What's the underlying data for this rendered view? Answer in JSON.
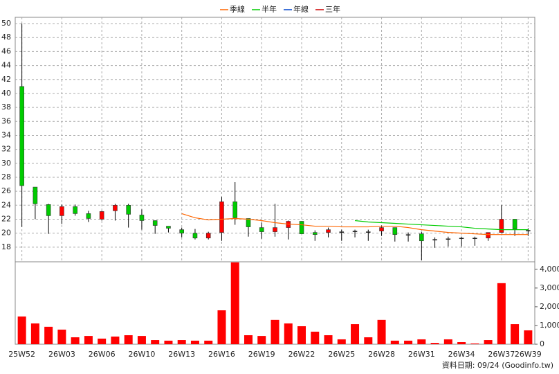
{
  "chart_data": {
    "type": "candlestick",
    "categories": [
      "25W52",
      null,
      null,
      "26W03",
      null,
      null,
      "26W06",
      null,
      null,
      "26W10",
      null,
      null,
      "26W13",
      null,
      null,
      "26W16",
      null,
      null,
      "26W19",
      null,
      null,
      "26W22",
      null,
      null,
      "26W25",
      null,
      null,
      "26W28",
      null,
      null,
      "26W31",
      null,
      null,
      "26W34",
      null,
      null,
      "26W37",
      null,
      "26W39"
    ],
    "open": [
      41,
      26.6,
      24.1,
      22.5,
      23.8,
      22.8,
      22,
      23.2,
      24,
      22.6,
      21.8,
      21,
      20.5,
      20,
      19.3,
      20.1,
      24.5,
      22.1,
      20.8,
      20.2,
      20.8,
      21.7,
      20.1,
      20.1,
      20.2,
      20.3,
      20.2,
      20.3,
      20.8,
      19.8,
      19.9,
      19.1,
      19.2,
      19.3,
      19.3,
      19.3,
      20.1,
      22,
      20.4
    ],
    "high": [
      50,
      26.6,
      24.2,
      24.1,
      24.1,
      23.2,
      23.2,
      24.2,
      24.2,
      23.4,
      21.8,
      21,
      20.8,
      20.6,
      20.2,
      25.2,
      27.3,
      22.1,
      21.5,
      24.2,
      21.8,
      21.7,
      20.4,
      20.8,
      20.5,
      20.5,
      20.5,
      21.1,
      20.8,
      20.1,
      20.2,
      19.4,
      19.5,
      19.5,
      19.5,
      20.1,
      24,
      22,
      20.7
    ],
    "low": [
      20.9,
      22,
      19.9,
      21.3,
      22.5,
      21.6,
      21.8,
      21.8,
      20.8,
      20.5,
      19.9,
      20.1,
      19.4,
      19.1,
      19.1,
      18.9,
      21.2,
      19.5,
      19.2,
      19.5,
      19.1,
      19.9,
      18.9,
      19.4,
      18.9,
      19.4,
      18.9,
      19.6,
      18.8,
      18.8,
      16.1,
      17.9,
      18.1,
      18.1,
      18.2,
      18.9,
      20.1,
      19.6,
      19.6
    ],
    "close": [
      26.8,
      24.2,
      22.5,
      23.8,
      22.8,
      22.1,
      23.1,
      24,
      22.7,
      21.8,
      21.1,
      20.7,
      20,
      19.3,
      20,
      24.5,
      22.2,
      20.9,
      20.2,
      20.8,
      21.7,
      19.9,
      19.8,
      20.5,
      20.2,
      20.3,
      20.2,
      20.8,
      19.8,
      19.8,
      18.9,
      19.1,
      19.2,
      19.3,
      19.3,
      20.1,
      22,
      20.6,
      20.4
    ],
    "up_color": "#ff0000",
    "down_color": "#00cc00",
    "series": [
      {
        "name": "季線",
        "color": "#ff6600",
        "values": [
          null,
          null,
          null,
          null,
          null,
          null,
          null,
          null,
          null,
          null,
          null,
          null,
          22.8,
          22.2,
          21.9,
          22.0,
          22.1,
          22.0,
          21.8,
          21.5,
          21.3,
          21.2,
          21.0,
          21.0,
          20.9,
          20.9,
          20.9,
          21.0,
          21.0,
          20.8,
          20.5,
          20.3,
          20.1,
          20.0,
          19.9,
          19.8,
          19.8,
          19.8,
          19.8
        ]
      },
      {
        "name": "半年",
        "color": "#00cc00",
        "values": [
          null,
          null,
          null,
          null,
          null,
          null,
          null,
          null,
          null,
          null,
          null,
          null,
          null,
          null,
          null,
          null,
          null,
          null,
          null,
          null,
          null,
          null,
          null,
          null,
          null,
          21.8,
          21.6,
          21.5,
          21.4,
          21.3,
          21.2,
          21.1,
          21.0,
          20.9,
          20.7,
          20.6,
          20.5,
          20.5,
          20.5
        ]
      },
      {
        "name": "年線",
        "color": "#0044cc",
        "values": [
          null,
          null,
          null,
          null,
          null,
          null,
          null,
          null,
          null,
          null,
          null,
          null,
          null,
          null,
          null,
          null,
          null,
          null,
          null,
          null,
          null,
          null,
          null,
          null,
          null,
          null,
          null,
          null,
          null,
          null,
          null,
          null,
          null,
          null,
          null,
          null,
          null,
          null,
          null
        ]
      },
      {
        "name": "三年",
        "color": "#cc0000",
        "values": [
          null,
          null,
          null,
          null,
          null,
          null,
          null,
          null,
          null,
          null,
          null,
          null,
          null,
          null,
          null,
          null,
          null,
          null,
          null,
          null,
          null,
          null,
          null,
          null,
          null,
          null,
          null,
          null,
          null,
          null,
          null,
          null,
          null,
          null,
          null,
          null,
          null,
          null,
          null
        ]
      }
    ],
    "ylim": [
      15.9,
      50.9
    ],
    "yticks": [
      18,
      20,
      22,
      24,
      26,
      28,
      30,
      32,
      34,
      36,
      38,
      40,
      42,
      44,
      46,
      48,
      50
    ],
    "grid": true,
    "volume": {
      "color": "#ff0000",
      "values": [
        1480,
        1110,
        930,
        780,
        370,
        440,
        300,
        410,
        480,
        440,
        220,
        190,
        220,
        190,
        190,
        1810,
        4370,
        480,
        440,
        1300,
        1110,
        960,
        670,
        480,
        260,
        1070,
        370,
        1300,
        190,
        190,
        260,
        70,
        260,
        110,
        40,
        220,
        3260,
        1070,
        740
      ],
      "ylim": [
        0,
        4400
      ],
      "yticks": [
        0,
        {
          "value": 1000,
          "label": "1,000"
        },
        {
          "value": 2000,
          "label": "2,000"
        },
        {
          "value": 3000,
          "label": "3,000"
        },
        {
          "value": 4000,
          "label": "4,000"
        }
      ]
    },
    "footnote": "資料日期: 09/24 (Goodinfo.tw)"
  }
}
